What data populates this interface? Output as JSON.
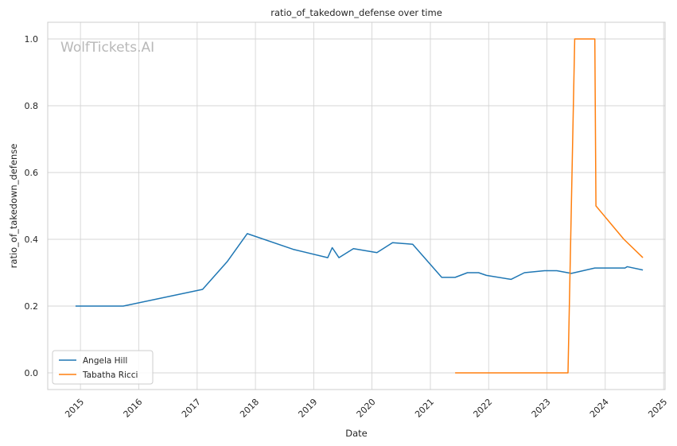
{
  "chart_data": {
    "type": "line",
    "title": "ratio_of_takedown_defense over time",
    "xlabel": "Date",
    "ylabel": "ratio_of_takedown_defense",
    "watermark": "WolfTickets.AI",
    "xlim": [
      "2014-06-10",
      "2025-01-10"
    ],
    "ylim": [
      -0.05,
      1.05
    ],
    "x_ticks": [
      "2015",
      "2016",
      "2017",
      "2018",
      "2019",
      "2020",
      "2021",
      "2022",
      "2023",
      "2024",
      "2025"
    ],
    "y_ticks": [
      "0.0",
      "0.2",
      "0.4",
      "0.6",
      "0.8",
      "1.0"
    ],
    "grid": true,
    "legend_position": "lower-left",
    "series": [
      {
        "name": "Angela Hill",
        "color": "#1f77b4",
        "points": [
          {
            "x": "2014-12-01",
            "y": 0.2
          },
          {
            "x": "2015-09-26",
            "y": 0.2
          },
          {
            "x": "2017-02-04",
            "y": 0.25
          },
          {
            "x": "2017-07-08",
            "y": 0.333
          },
          {
            "x": "2017-11-11",
            "y": 0.417
          },
          {
            "x": "2018-08-25",
            "y": 0.37
          },
          {
            "x": "2019-03-30",
            "y": 0.345
          },
          {
            "x": "2019-04-27",
            "y": 0.375
          },
          {
            "x": "2019-06-08",
            "y": 0.345
          },
          {
            "x": "2019-09-07",
            "y": 0.372
          },
          {
            "x": "2020-02-01",
            "y": 0.36
          },
          {
            "x": "2020-05-09",
            "y": 0.39
          },
          {
            "x": "2020-09-12",
            "y": 0.385
          },
          {
            "x": "2021-03-13",
            "y": 0.286
          },
          {
            "x": "2021-06-05",
            "y": 0.286
          },
          {
            "x": "2021-08-21",
            "y": 0.3
          },
          {
            "x": "2021-10-30",
            "y": 0.3
          },
          {
            "x": "2021-12-18",
            "y": 0.292
          },
          {
            "x": "2022-05-21",
            "y": 0.28
          },
          {
            "x": "2022-08-13",
            "y": 0.3
          },
          {
            "x": "2022-12-17",
            "y": 0.306
          },
          {
            "x": "2023-03-04",
            "y": 0.306
          },
          {
            "x": "2023-06-03",
            "y": 0.298
          },
          {
            "x": "2023-10-28",
            "y": 0.314
          },
          {
            "x": "2024-05-04",
            "y": 0.314
          },
          {
            "x": "2024-05-18",
            "y": 0.318
          },
          {
            "x": "2024-08-24",
            "y": 0.308
          }
        ]
      },
      {
        "name": "Tabatha Ricci",
        "color": "#ff7f0e",
        "points": [
          {
            "x": "2021-06-05",
            "y": 0.0
          },
          {
            "x": "2023-05-13",
            "y": 0.0
          },
          {
            "x": "2023-06-24",
            "y": 1.0
          },
          {
            "x": "2023-10-28",
            "y": 1.0
          },
          {
            "x": "2023-11-04",
            "y": 0.5
          },
          {
            "x": "2024-04-27",
            "y": 0.4
          },
          {
            "x": "2024-08-24",
            "y": 0.345
          }
        ]
      }
    ]
  }
}
